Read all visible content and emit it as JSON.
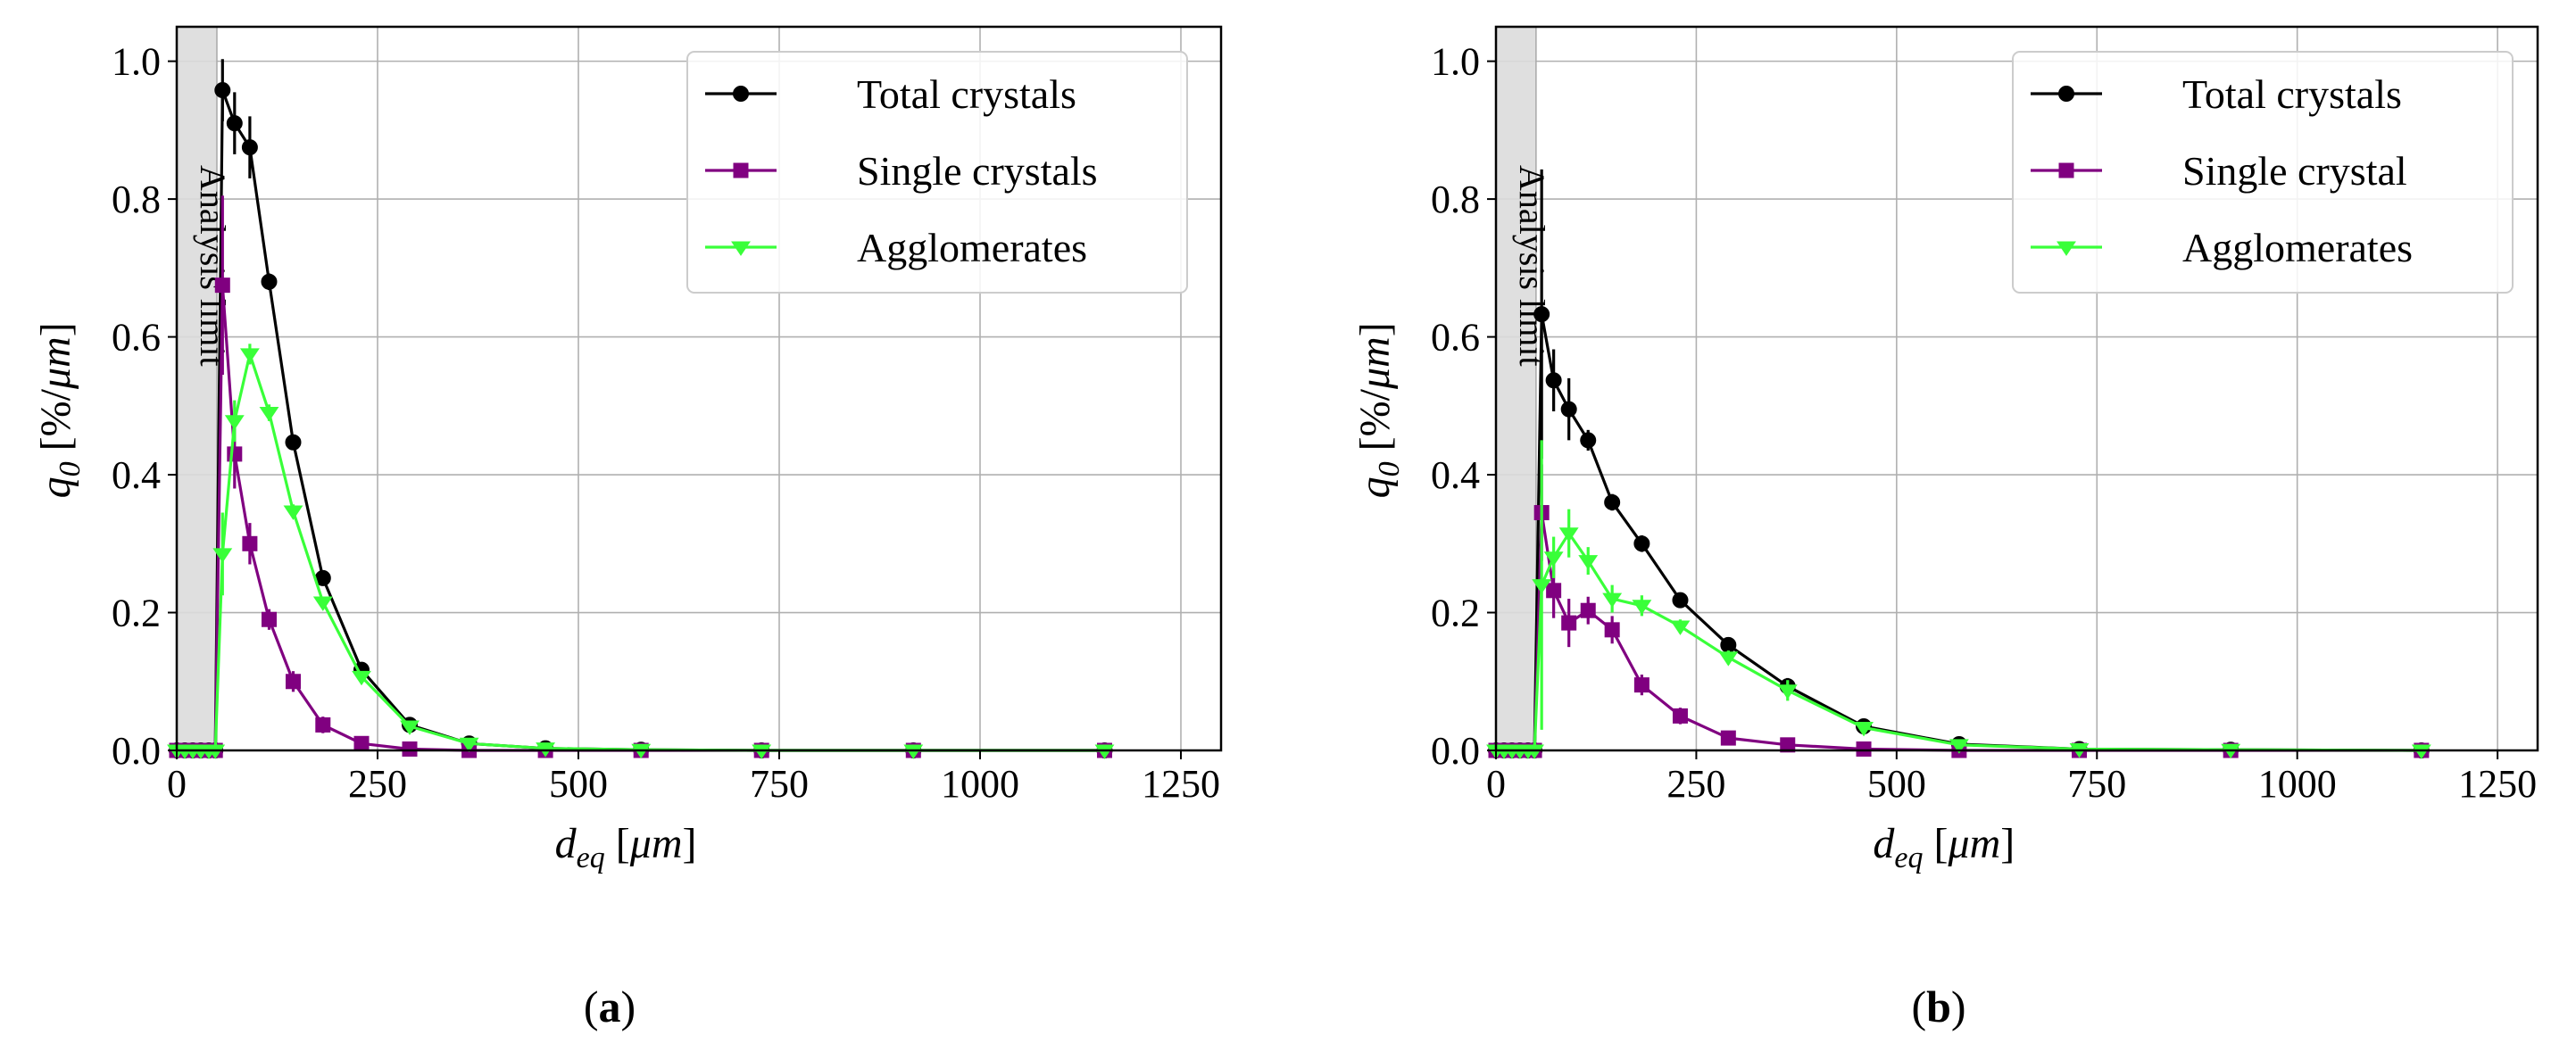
{
  "chart_data": [
    {
      "type": "line",
      "panel_label": "a",
      "xlabel": "d_eq [μm]",
      "ylabel": "q_0 [%/μm]",
      "xlim": [
        0,
        1300
      ],
      "ylim": [
        0,
        1.05
      ],
      "xticks": [
        0,
        250,
        500,
        750,
        1000,
        1250
      ],
      "yticks": [
        0.0,
        0.2,
        0.4,
        0.6,
        0.8,
        1.0
      ],
      "xtick_labels": [
        "0",
        "250",
        "500",
        "750",
        "1000",
        "1250"
      ],
      "ytick_labels": [
        "0.0",
        "0.2",
        "0.4",
        "0.6",
        "0.8",
        "1.0"
      ],
      "grid": true,
      "legend_position": "top-right",
      "shaded_region": {
        "x": [
          0,
          50
        ],
        "label": "Analysis limit"
      },
      "series": [
        {
          "name": "Total crystals",
          "color": "#000000",
          "marker": "circle",
          "points": [
            [
              0,
              0
            ],
            [
              10,
              0
            ],
            [
              20,
              0
            ],
            [
              30,
              0
            ],
            [
              40,
              0
            ],
            [
              48,
              0
            ],
            [
              57,
              0.958
            ],
            [
              72,
              0.91
            ],
            [
              91,
              0.875
            ],
            [
              115,
              0.68
            ],
            [
              145,
              0.447
            ],
            [
              182,
              0.25
            ],
            [
              230,
              0.117
            ],
            [
              290,
              0.037
            ],
            [
              364,
              0.01
            ],
            [
              459,
              0.003
            ],
            [
              578,
              0.001
            ],
            [
              728,
              0.0
            ],
            [
              917,
              0.0
            ],
            [
              1155,
              0.0
            ]
          ],
          "errors": [
            0,
            0,
            0,
            0,
            0,
            0,
            0.045,
            0.045,
            0.045,
            0.012,
            0.01,
            0.008,
            0.006,
            0.004,
            0,
            0,
            0,
            0,
            0,
            0
          ]
        },
        {
          "name": "Single crystals",
          "color": "#800080",
          "marker": "square",
          "points": [
            [
              0,
              0
            ],
            [
              10,
              0
            ],
            [
              20,
              0
            ],
            [
              30,
              0
            ],
            [
              40,
              0
            ],
            [
              48,
              0
            ],
            [
              57,
              0.675
            ],
            [
              72,
              0.43
            ],
            [
              91,
              0.3
            ],
            [
              115,
              0.19
            ],
            [
              145,
              0.1
            ],
            [
              182,
              0.037
            ],
            [
              230,
              0.01
            ],
            [
              290,
              0.002
            ],
            [
              364,
              0.0
            ],
            [
              459,
              0.0
            ],
            [
              578,
              0.0
            ],
            [
              728,
              0.0
            ],
            [
              917,
              0.0
            ],
            [
              1155,
              0.0
            ]
          ],
          "errors": [
            0,
            0,
            0,
            0,
            0,
            0,
            0.13,
            0.05,
            0.03,
            0.015,
            0.015,
            0.012,
            0.008,
            0.003,
            0,
            0,
            0,
            0,
            0,
            0
          ]
        },
        {
          "name": "Agglomerates",
          "color": "#39ff39",
          "marker": "triangle-down",
          "points": [
            [
              0,
              0
            ],
            [
              10,
              0
            ],
            [
              20,
              0
            ],
            [
              30,
              0
            ],
            [
              40,
              0
            ],
            [
              48,
              0
            ],
            [
              57,
              0.285
            ],
            [
              72,
              0.478
            ],
            [
              91,
              0.575
            ],
            [
              115,
              0.49
            ],
            [
              145,
              0.347
            ],
            [
              182,
              0.215
            ],
            [
              230,
              0.107
            ],
            [
              290,
              0.035
            ],
            [
              364,
              0.01
            ],
            [
              459,
              0.003
            ],
            [
              578,
              0.001
            ],
            [
              728,
              0.0
            ],
            [
              917,
              0.0
            ],
            [
              1155,
              0.0
            ]
          ],
          "errors": [
            0,
            0,
            0,
            0,
            0,
            0,
            0.06,
            0.03,
            0.015,
            0.012,
            0.01,
            0.008,
            0.006,
            0.004,
            0,
            0,
            0,
            0,
            0,
            0
          ]
        }
      ]
    },
    {
      "type": "line",
      "panel_label": "b",
      "xlabel": "d_eq [μm]",
      "ylabel": "q_0 [%/μm]",
      "xlim": [
        0,
        1300
      ],
      "ylim": [
        0,
        1.05
      ],
      "xticks": [
        0,
        250,
        500,
        750,
        1000,
        1250
      ],
      "yticks": [
        0.0,
        0.2,
        0.4,
        0.6,
        0.8,
        1.0
      ],
      "xtick_labels": [
        "0",
        "250",
        "500",
        "750",
        "1000",
        "1250"
      ],
      "ytick_labels": [
        "0.0",
        "0.2",
        "0.4",
        "0.6",
        "0.8",
        "1.0"
      ],
      "grid": true,
      "legend_position": "top-right",
      "shaded_region": {
        "x": [
          0,
          50
        ],
        "label": "Analysis limit"
      },
      "series": [
        {
          "name": "Total crystals",
          "color": "#000000",
          "marker": "circle",
          "points": [
            [
              0,
              0
            ],
            [
              10,
              0
            ],
            [
              20,
              0
            ],
            [
              30,
              0
            ],
            [
              40,
              0
            ],
            [
              48,
              0
            ],
            [
              57,
              0.633
            ],
            [
              72,
              0.537
            ],
            [
              91,
              0.495
            ],
            [
              115,
              0.45
            ],
            [
              145,
              0.36
            ],
            [
              182,
              0.3
            ],
            [
              230,
              0.218
            ],
            [
              290,
              0.153
            ],
            [
              364,
              0.093
            ],
            [
              459,
              0.035
            ],
            [
              578,
              0.009
            ],
            [
              728,
              0.002
            ],
            [
              917,
              0.001
            ],
            [
              1155,
              0.0
            ]
          ],
          "errors": [
            0,
            0,
            0,
            0,
            0,
            0,
            0.21,
            0.045,
            0.045,
            0.015,
            0.012,
            0.012,
            0.01,
            0.01,
            0.012,
            0.006,
            0.004,
            0,
            0,
            0
          ]
        },
        {
          "name": "Single crystal",
          "color": "#800080",
          "marker": "square",
          "points": [
            [
              0,
              0
            ],
            [
              10,
              0
            ],
            [
              20,
              0
            ],
            [
              30,
              0
            ],
            [
              40,
              0
            ],
            [
              48,
              0
            ],
            [
              57,
              0.345
            ],
            [
              72,
              0.232
            ],
            [
              91,
              0.185
            ],
            [
              115,
              0.203
            ],
            [
              145,
              0.175
            ],
            [
              182,
              0.095
            ],
            [
              230,
              0.05
            ],
            [
              290,
              0.018
            ],
            [
              364,
              0.008
            ],
            [
              459,
              0.002
            ],
            [
              578,
              0.0
            ],
            [
              728,
              0.0
            ],
            [
              917,
              0.0
            ],
            [
              1155,
              0.0
            ]
          ],
          "errors": [
            0,
            0,
            0,
            0,
            0,
            0,
            0.07,
            0.04,
            0.035,
            0.02,
            0.02,
            0.015,
            0.012,
            0.005,
            0,
            0,
            0,
            0,
            0,
            0
          ]
        },
        {
          "name": "Agglomerates",
          "color": "#39ff39",
          "marker": "triangle-down",
          "points": [
            [
              0,
              0
            ],
            [
              10,
              0
            ],
            [
              20,
              0
            ],
            [
              30,
              0
            ],
            [
              40,
              0
            ],
            [
              48,
              0
            ],
            [
              57,
              0.24
            ],
            [
              72,
              0.28
            ],
            [
              91,
              0.315
            ],
            [
              115,
              0.275
            ],
            [
              145,
              0.22
            ],
            [
              182,
              0.21
            ],
            [
              230,
              0.18
            ],
            [
              290,
              0.135
            ],
            [
              364,
              0.087
            ],
            [
              459,
              0.033
            ],
            [
              578,
              0.008
            ],
            [
              728,
              0.002
            ],
            [
              917,
              0.001
            ],
            [
              1155,
              0.0
            ]
          ],
          "errors": [
            0,
            0,
            0,
            0,
            0,
            0,
            0.21,
            0.03,
            0.035,
            0.02,
            0.02,
            0.015,
            0.01,
            0.01,
            0.015,
            0.006,
            0.004,
            0,
            0,
            0
          ]
        }
      ]
    }
  ]
}
